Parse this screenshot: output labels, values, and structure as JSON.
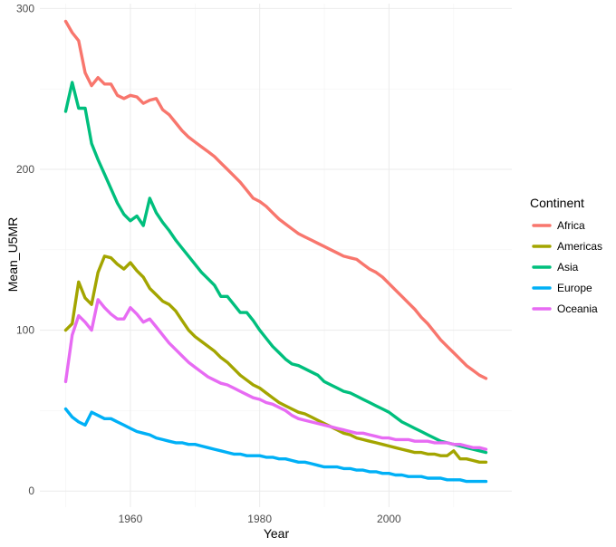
{
  "chart_data": {
    "type": "line",
    "title": "",
    "xlabel": "Year",
    "ylabel": "Mean_U5MR",
    "xlim": [
      1946,
      2019
    ],
    "ylim": [
      -10,
      303
    ],
    "x_ticks": [
      1960,
      1980,
      2000
    ],
    "y_ticks": [
      0,
      100,
      200,
      300
    ],
    "grid": true,
    "legend": {
      "title": "Continent",
      "position": "right"
    },
    "series": [
      {
        "name": "Africa",
        "color": "#F8766D",
        "x": [
          1950,
          1951,
          1952,
          1953,
          1954,
          1955,
          1956,
          1957,
          1958,
          1959,
          1960,
          1961,
          1962,
          1963,
          1964,
          1965,
          1966,
          1967,
          1968,
          1969,
          1970,
          1971,
          1972,
          1973,
          1974,
          1975,
          1976,
          1977,
          1978,
          1979,
          1980,
          1981,
          1982,
          1983,
          1984,
          1985,
          1986,
          1987,
          1988,
          1989,
          1990,
          1991,
          1992,
          1993,
          1994,
          1995,
          1996,
          1997,
          1998,
          1999,
          2000,
          2001,
          2002,
          2003,
          2004,
          2005,
          2006,
          2007,
          2008,
          2009,
          2010,
          2011,
          2012,
          2013,
          2014,
          2015
        ],
        "y": [
          292,
          285,
          280,
          260,
          252,
          257,
          253,
          253,
          246,
          244,
          246,
          245,
          241,
          243,
          244,
          237,
          234,
          229,
          224,
          220,
          217,
          214,
          211,
          208,
          204,
          200,
          196,
          192,
          187,
          182,
          180,
          177,
          173,
          169,
          166,
          163,
          160,
          158,
          156,
          154,
          152,
          150,
          148,
          146,
          145,
          144,
          141,
          138,
          136,
          133,
          129,
          125,
          121,
          117,
          113,
          108,
          104,
          99,
          94,
          90,
          86,
          82,
          78,
          75,
          72,
          70
        ]
      },
      {
        "name": "Americas",
        "color": "#A3A500",
        "x": [
          1950,
          1951,
          1952,
          1953,
          1954,
          1955,
          1956,
          1957,
          1958,
          1959,
          1960,
          1961,
          1962,
          1963,
          1964,
          1965,
          1966,
          1967,
          1968,
          1969,
          1970,
          1971,
          1972,
          1973,
          1974,
          1975,
          1976,
          1977,
          1978,
          1979,
          1980,
          1981,
          1982,
          1983,
          1984,
          1985,
          1986,
          1987,
          1988,
          1989,
          1990,
          1991,
          1992,
          1993,
          1994,
          1995,
          1996,
          1997,
          1998,
          1999,
          2000,
          2001,
          2002,
          2003,
          2004,
          2005,
          2006,
          2007,
          2008,
          2009,
          2010,
          2011,
          2012,
          2013,
          2014,
          2015
        ],
        "y": [
          100,
          104,
          130,
          120,
          116,
          136,
          146,
          145,
          141,
          138,
          142,
          137,
          133,
          126,
          122,
          118,
          116,
          112,
          106,
          100,
          96,
          93,
          90,
          87,
          83,
          80,
          76,
          72,
          69,
          66,
          64,
          61,
          58,
          55,
          53,
          51,
          49,
          48,
          46,
          44,
          42,
          40,
          38,
          36,
          35,
          33,
          32,
          31,
          30,
          29,
          28,
          27,
          26,
          25,
          24,
          24,
          23,
          23,
          22,
          22,
          25,
          20,
          20,
          19,
          18,
          18
        ]
      },
      {
        "name": "Asia",
        "color": "#00BF7D",
        "x": [
          1950,
          1951,
          1952,
          1953,
          1954,
          1955,
          1956,
          1957,
          1958,
          1959,
          1960,
          1961,
          1962,
          1963,
          1964,
          1965,
          1966,
          1967,
          1968,
          1969,
          1970,
          1971,
          1972,
          1973,
          1974,
          1975,
          1976,
          1977,
          1978,
          1979,
          1980,
          1981,
          1982,
          1983,
          1984,
          1985,
          1986,
          1987,
          1988,
          1989,
          1990,
          1991,
          1992,
          1993,
          1994,
          1995,
          1996,
          1997,
          1998,
          1999,
          2000,
          2001,
          2002,
          2003,
          2004,
          2005,
          2006,
          2007,
          2008,
          2009,
          2010,
          2011,
          2012,
          2013,
          2014,
          2015
        ],
        "y": [
          236,
          254,
          238,
          238,
          216,
          206,
          197,
          188,
          179,
          172,
          168,
          171,
          165,
          182,
          173,
          167,
          162,
          156,
          151,
          146,
          141,
          136,
          132,
          128,
          121,
          121,
          116,
          111,
          111,
          106,
          100,
          95,
          90,
          86,
          82,
          79,
          78,
          76,
          74,
          72,
          68,
          66,
          64,
          62,
          61,
          59,
          57,
          55,
          53,
          51,
          49,
          46,
          43,
          41,
          39,
          37,
          35,
          33,
          31,
          30,
          29,
          28,
          27,
          26,
          25,
          24
        ]
      },
      {
        "name": "Europe",
        "color": "#00B0F6",
        "x": [
          1950,
          1951,
          1952,
          1953,
          1954,
          1955,
          1956,
          1957,
          1958,
          1959,
          1960,
          1961,
          1962,
          1963,
          1964,
          1965,
          1966,
          1967,
          1968,
          1969,
          1970,
          1971,
          1972,
          1973,
          1974,
          1975,
          1976,
          1977,
          1978,
          1979,
          1980,
          1981,
          1982,
          1983,
          1984,
          1985,
          1986,
          1987,
          1988,
          1989,
          1990,
          1991,
          1992,
          1993,
          1994,
          1995,
          1996,
          1997,
          1998,
          1999,
          2000,
          2001,
          2002,
          2003,
          2004,
          2005,
          2006,
          2007,
          2008,
          2009,
          2010,
          2011,
          2012,
          2013,
          2014,
          2015
        ],
        "y": [
          51,
          46,
          43,
          41,
          49,
          47,
          45,
          45,
          43,
          41,
          39,
          37,
          36,
          35,
          33,
          32,
          31,
          30,
          30,
          29,
          29,
          28,
          27,
          26,
          25,
          24,
          23,
          23,
          22,
          22,
          22,
          21,
          21,
          20,
          20,
          19,
          18,
          18,
          17,
          16,
          15,
          15,
          15,
          14,
          14,
          13,
          13,
          12,
          12,
          11,
          11,
          10,
          10,
          9,
          9,
          9,
          8,
          8,
          8,
          7,
          7,
          7,
          6,
          6,
          6,
          6
        ]
      },
      {
        "name": "Oceania",
        "color": "#E76BF3",
        "x": [
          1950,
          1951,
          1952,
          1953,
          1954,
          1955,
          1956,
          1957,
          1958,
          1959,
          1960,
          1961,
          1962,
          1963,
          1964,
          1965,
          1966,
          1967,
          1968,
          1969,
          1970,
          1971,
          1972,
          1973,
          1974,
          1975,
          1976,
          1977,
          1978,
          1979,
          1980,
          1981,
          1982,
          1983,
          1984,
          1985,
          1986,
          1987,
          1988,
          1989,
          1990,
          1991,
          1992,
          1993,
          1994,
          1995,
          1996,
          1997,
          1998,
          1999,
          2000,
          2001,
          2002,
          2003,
          2004,
          2005,
          2006,
          2007,
          2008,
          2009,
          2010,
          2011,
          2012,
          2013,
          2014,
          2015
        ],
        "y": [
          68,
          97,
          109,
          105,
          100,
          119,
          114,
          110,
          107,
          107,
          114,
          110,
          105,
          107,
          102,
          97,
          92,
          88,
          84,
          80,
          77,
          74,
          71,
          69,
          67,
          66,
          64,
          62,
          60,
          58,
          57,
          55,
          54,
          52,
          50,
          47,
          45,
          44,
          43,
          42,
          41,
          40,
          39,
          38,
          37,
          36,
          36,
          35,
          34,
          33,
          33,
          32,
          32,
          32,
          31,
          31,
          31,
          30,
          30,
          30,
          29,
          29,
          28,
          27,
          27,
          26
        ]
      }
    ]
  }
}
